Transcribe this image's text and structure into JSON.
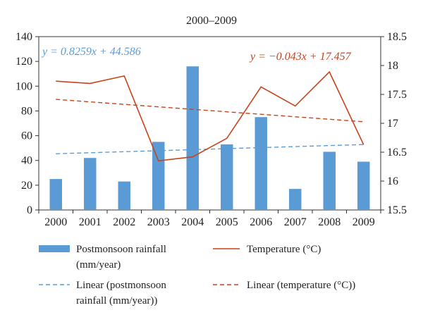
{
  "chart_data": {
    "type": "bar+line",
    "title": "2000–2009",
    "categories": [
      "2000",
      "2001",
      "2002",
      "2003",
      "2004",
      "2005",
      "2006",
      "2007",
      "2008",
      "2009"
    ],
    "series": [
      {
        "name": "Postmonsoon rainfall (mm/year)",
        "kind": "bar",
        "axis": "left",
        "color": "#5b9bd5",
        "values": [
          25,
          42,
          23,
          55,
          116,
          53,
          75,
          17,
          47,
          39
        ]
      },
      {
        "name": "Temperature (°C)",
        "kind": "line",
        "axis": "right",
        "color": "#c9421a",
        "values": [
          17.73,
          17.69,
          17.82,
          16.35,
          16.42,
          16.74,
          17.63,
          17.3,
          17.89,
          16.63
        ]
      },
      {
        "name": "Linear (postmonsoon rainfall (mm/year))",
        "kind": "trend",
        "axis": "left",
        "color": "#5b9bd5",
        "dash": "dashed",
        "equation": "y = 0.8259x + 44.586",
        "slope": 0.8259,
        "intercept": 44.586
      },
      {
        "name": "Linear (temperature (°C))",
        "kind": "trend",
        "axis": "right",
        "color": "#c9421a",
        "dash": "dashed",
        "equation": "y = −0.043x + 17.457",
        "slope": -0.043,
        "intercept": 17.457
      }
    ],
    "y_left": {
      "min": 0,
      "max": 140,
      "step": 20,
      "ticks": [
        "0",
        "20",
        "40",
        "60",
        "80",
        "100",
        "120",
        "140"
      ]
    },
    "y_right": {
      "min": 15.5,
      "max": 18.5,
      "step": 0.5,
      "ticks": [
        "15.5",
        "16",
        "16.5",
        "17",
        "17.5",
        "18",
        "18.5"
      ]
    },
    "grid": false,
    "legend_position": "bottom"
  },
  "legend": {
    "bar_label_line1": "Postmonsoon rainfall",
    "bar_label_line2": "(mm/year)",
    "temp_label": "Temperature (°C)",
    "rain_trend_line1": "Linear (postmonsoon",
    "rain_trend_line2": "rainfall (mm/year))",
    "temp_trend_label": "Linear (temperature (°C))"
  }
}
